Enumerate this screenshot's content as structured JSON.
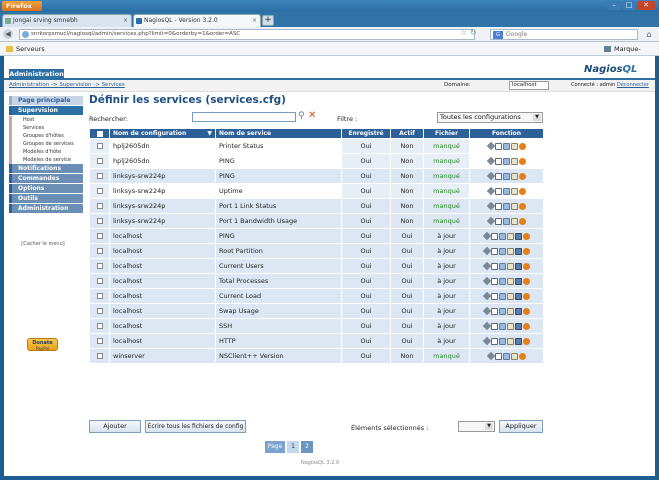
{
  "browser": {
    "menu_button": "Firefox",
    "tabs": [
      {
        "title": "Jongai srving smnebh"
      },
      {
        "title": "NagiosQL - Version 3.2.0"
      }
    ],
    "new_tab": "+",
    "url": "snrkorpsmucl/nagiosql/admin/services.php?limit=0&orderby=1&order=ASC",
    "search_placeholder": "Google",
    "bookmarks": {
      "left": "Serveurs",
      "right": "Marque-pages"
    }
  },
  "app": {
    "tab": "Administration",
    "logo_a": "Nagios",
    "logo_b": "QL",
    "breadcrumb": "Administration -> Supervision -> Services",
    "domain_label": "Domaine:",
    "domain_value": "localhost",
    "connected_label": "Connecté : admin",
    "logout": "Déconnecter"
  },
  "sidebar": {
    "page_principale": "Page principale",
    "supervision": "Supervision",
    "supervision_items": [
      "Host",
      "Services",
      "Groupes d'hôtes",
      "Groupes de services",
      "Modèles d'hôte",
      "Modèles de service"
    ],
    "notifications": "Notifications",
    "commandes": "Commandes",
    "options": "Options",
    "outils": "Outils",
    "administration": "Administration",
    "hide_menu": "[Cacher le menu]",
    "donate_1": "Donate",
    "donate_2": "PayPal"
  },
  "main": {
    "title": "Définir les services (services.cfg)",
    "search_label": "Rechercher:",
    "filter_label": "Filtre :",
    "filter_value": "Toutes les configurations",
    "columns": [
      "Nom de configuration",
      "Nom de service",
      "Enregistré",
      "Actif",
      "Fichier",
      "Fonction"
    ],
    "rows": [
      {
        "config": "hplj2605dn",
        "service": "Printer Status",
        "saved": "Oui",
        "active": "Non",
        "file": "manqué"
      },
      {
        "config": "hplj2605dn",
        "service": "PING",
        "saved": "Oui",
        "active": "Non",
        "file": "manqué"
      },
      {
        "config": "linksys-srw224p",
        "service": "PING",
        "saved": "Oui",
        "active": "Non",
        "file": "manqué"
      },
      {
        "config": "linksys-srw224p",
        "service": "Uptime",
        "saved": "Oui",
        "active": "Non",
        "file": "manqué"
      },
      {
        "config": "linksys-srw224p",
        "service": "Port 1 Link Status",
        "saved": "Oui",
        "active": "Non",
        "file": "manqué"
      },
      {
        "config": "linksys-srw224p",
        "service": "Port 1 Bandwidth Usage",
        "saved": "Oui",
        "active": "Non",
        "file": "manqué"
      },
      {
        "config": "localhost",
        "service": "PING",
        "saved": "Oui",
        "active": "Oui",
        "file": "à jour"
      },
      {
        "config": "localhost",
        "service": "Root Partition",
        "saved": "Oui",
        "active": "Oui",
        "file": "à jour"
      },
      {
        "config": "localhost",
        "service": "Current Users",
        "saved": "Oui",
        "active": "Oui",
        "file": "à jour"
      },
      {
        "config": "localhost",
        "service": "Total Processes",
        "saved": "Oui",
        "active": "Oui",
        "file": "à jour"
      },
      {
        "config": "localhost",
        "service": "Current Load",
        "saved": "Oui",
        "active": "Oui",
        "file": "à jour"
      },
      {
        "config": "localhost",
        "service": "Swap Usage",
        "saved": "Oui",
        "active": "Oui",
        "file": "à jour"
      },
      {
        "config": "localhost",
        "service": "SSH",
        "saved": "Oui",
        "active": "Oui",
        "file": "à jour"
      },
      {
        "config": "localhost",
        "service": "HTTP",
        "saved": "Oui",
        "active": "Oui",
        "file": "à jour"
      },
      {
        "config": "winserver",
        "service": "NSClient++ Version",
        "saved": "Oui",
        "active": "Non",
        "file": "manqué"
      }
    ],
    "add_button": "Ajouter",
    "write_button": "Écrire tous les fichiers de config",
    "selected_label": "Éléments sélectionnés :",
    "apply_button": "Appliquer",
    "pages_label": "Page",
    "pages": [
      "1",
      "2"
    ],
    "footer": "NagiosQL 3.2.0"
  },
  "colors": {
    "header_blue": "#2d5f99",
    "row_blue": "#dce7f3",
    "ok_green": "#2a8a2a",
    "delete_orange": "#e57f16"
  }
}
